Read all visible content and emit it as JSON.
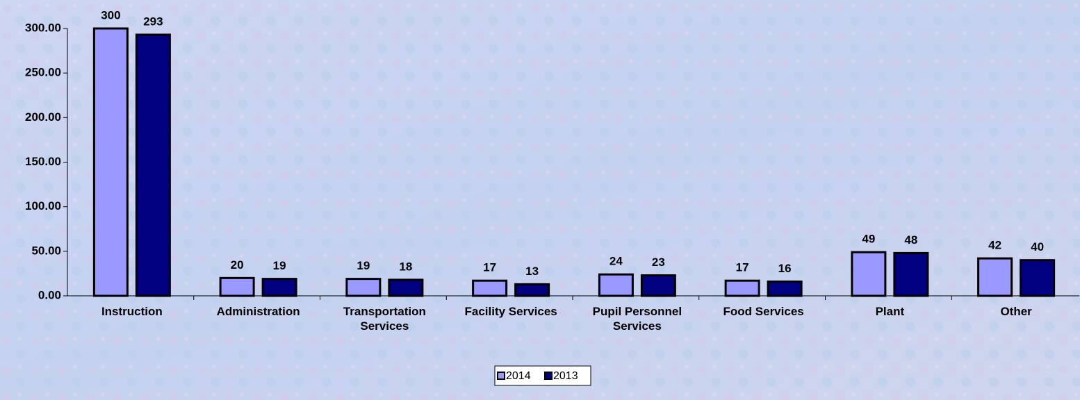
{
  "chart_data": {
    "type": "bar",
    "categories": [
      "Instruction",
      "Administration",
      "Transportation Services",
      "Facility Services",
      "Pupil Personnel Services",
      "Food Services",
      "Plant",
      "Other"
    ],
    "series": [
      {
        "name": "2014",
        "color": "#9999ff",
        "values": [
          300,
          20,
          19,
          17,
          24,
          17,
          49,
          42
        ]
      },
      {
        "name": "2013",
        "color": "#000080",
        "values": [
          293,
          19,
          18,
          13,
          23,
          16,
          48,
          40
        ]
      }
    ],
    "ylim": [
      0,
      300
    ],
    "yticks": [
      {
        "value": 0,
        "label": "0.00"
      },
      {
        "value": 50,
        "label": "50.00"
      },
      {
        "value": 100,
        "label": "100.00"
      },
      {
        "value": 150,
        "label": "150.00"
      },
      {
        "value": 200,
        "label": "200.00"
      },
      {
        "value": 250,
        "label": "250.00"
      },
      {
        "value": 300,
        "label": "300.00"
      }
    ],
    "legend": "bottom"
  }
}
